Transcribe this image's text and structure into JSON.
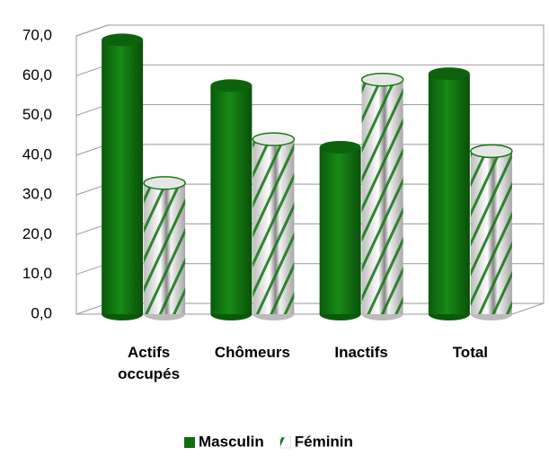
{
  "chart_data": {
    "type": "bar",
    "categories": [
      "Actifs occupés",
      "Chômeurs",
      "Inactifs",
      "Total"
    ],
    "series": [
      {
        "name": "Masculin",
        "color": "#0e6e0e",
        "values": [
          69,
          57.5,
          42,
          60.5
        ]
      },
      {
        "name": "Féminin",
        "color": "#1a7a1a",
        "values": [
          33,
          44,
          59,
          41
        ]
      }
    ],
    "ylim": [
      0,
      70
    ],
    "yticks": [
      {
        "value": 0,
        "label": "0,0"
      },
      {
        "value": 10,
        "label": "10,0"
      },
      {
        "value": 20,
        "label": "20,0"
      },
      {
        "value": 30,
        "label": "30,0"
      },
      {
        "value": 40,
        "label": "40,0"
      },
      {
        "value": 50,
        "label": "50,0"
      },
      {
        "value": 60,
        "label": "60,0"
      },
      {
        "value": 70,
        "label": "70,0"
      }
    ],
    "grid": true,
    "legend": "bottom"
  }
}
